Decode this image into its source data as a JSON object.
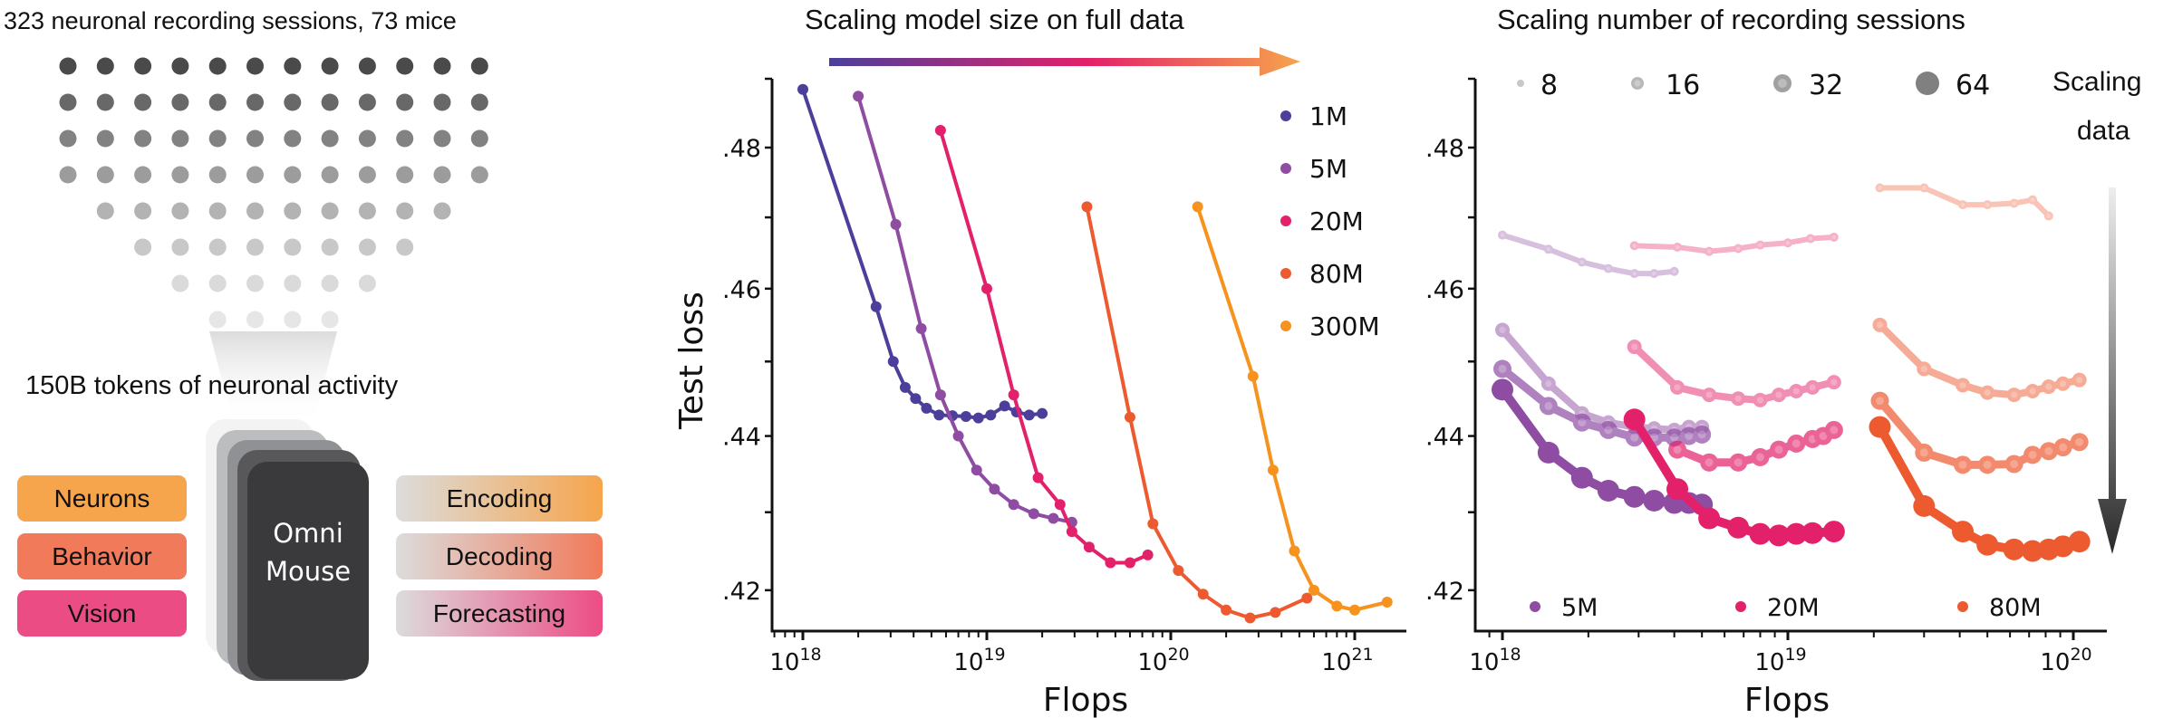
{
  "left_panel": {
    "sessions_caption": "323 neuronal recording sessions, 73 mice",
    "tokens_caption": "150B tokens of neuronal activity",
    "model_name_line1": "Omni",
    "model_name_line2": "Mouse",
    "inputs": [
      {
        "label": "Neurons",
        "color": "#F6A54C"
      },
      {
        "label": "Behavior",
        "color": "#F17A5A"
      },
      {
        "label": "Vision",
        "color": "#EC4C84"
      }
    ],
    "outputs": [
      {
        "label": "Encoding",
        "color": "#F6A54C"
      },
      {
        "label": "Decoding",
        "color": "#F17A5A"
      },
      {
        "label": "Forecasting",
        "color": "#EC4C84"
      }
    ]
  },
  "chart_data": [
    {
      "type": "line",
      "title": "Scaling model size on full data",
      "xlabel": "Flops",
      "ylabel": "Test loss",
      "xscale": "log",
      "yscale": "log",
      "xlim": [
        6e+17,
        1.7e+21
      ],
      "ylim": [
        0.4135,
        0.492
      ],
      "xticks": [
        {
          "value": 1e+18,
          "base": "10",
          "exp": "18"
        },
        {
          "value": 1e+19,
          "base": "10",
          "exp": "19"
        },
        {
          "value": 1e+20,
          "base": "10",
          "exp": "20"
        },
        {
          "value": 1e+21,
          "base": "10",
          "exp": "21"
        }
      ],
      "yticks": [
        {
          "value": 0.48,
          "label": ".48"
        },
        {
          "value": 0.46,
          "label": ".46"
        },
        {
          "value": 0.44,
          "label": ".44"
        },
        {
          "value": 0.42,
          "label": ".42"
        }
      ],
      "legend_position": "top-right",
      "series": [
        {
          "name": "1M",
          "color": "#4B3F9B",
          "x": [
            1e+18,
            2.5e+18,
            3.1e+18,
            3.6e+18,
            4.1e+18,
            4.7e+18,
            5.5e+18,
            6.5e+18,
            7.7e+18,
            9e+18,
            1.05e+19,
            1.25e+19,
            1.45e+19,
            1.7e+19,
            2e+19
          ],
          "y": [
            0.4885,
            0.4575,
            0.45,
            0.4465,
            0.445,
            0.4437,
            0.4428,
            0.4427,
            0.4426,
            0.4424,
            0.4428,
            0.444,
            0.4432,
            0.4428,
            0.443
          ]
        },
        {
          "name": "5M",
          "color": "#8E4DA3",
          "x": [
            2e+18,
            3.2e+18,
            4.4e+18,
            5.6e+18,
            7e+18,
            8.8e+18,
            1.1e+19,
            1.4e+19,
            1.8e+19,
            2.3e+19,
            2.9e+19
          ],
          "y": [
            0.4875,
            0.469,
            0.4545,
            0.4455,
            0.44,
            0.4355,
            0.433,
            0.431,
            0.4298,
            0.4292,
            0.4287
          ]
        },
        {
          "name": "20M",
          "color": "#E3206A",
          "x": [
            5.6e+18,
            1e+19,
            1.4e+19,
            1.9e+19,
            2.5e+19,
            2.9e+19,
            3.6e+19,
            4.7e+19,
            6e+19,
            7.5e+19
          ],
          "y": [
            0.4825,
            0.46,
            0.4455,
            0.4345,
            0.431,
            0.4275,
            0.4255,
            0.4235,
            0.4235,
            0.4245
          ]
        },
        {
          "name": "80M",
          "color": "#EE5A30",
          "x": [
            3.5e+19,
            6e+19,
            8e+19,
            1.1e+20,
            1.5e+20,
            2e+20,
            2.7e+20,
            3.7e+20,
            5.5e+20
          ],
          "y": [
            0.4715,
            0.4425,
            0.4285,
            0.4225,
            0.4195,
            0.4175,
            0.4165,
            0.4172,
            0.419
          ]
        },
        {
          "name": "300M",
          "color": "#F6921E",
          "x": [
            1.4e+20,
            2.8e+20,
            3.6e+20,
            4.7e+20,
            6e+20,
            8e+20,
            1e+21,
            1.5e+21
          ],
          "y": [
            0.4715,
            0.448,
            0.4355,
            0.425,
            0.42,
            0.418,
            0.4175,
            0.4185
          ]
        }
      ]
    },
    {
      "type": "line",
      "title": "Scaling number of recording sessions",
      "xlabel": "Flops",
      "ylabel": "",
      "xscale": "log",
      "yscale": "log",
      "xlim": [
        9e+17,
        1.25e+20
      ],
      "ylim": [
        0.4135,
        0.492
      ],
      "xticks": [
        {
          "value": 1e+18,
          "base": "10",
          "exp": "18"
        },
        {
          "value": 1e+19,
          "base": "10",
          "exp": "19"
        },
        {
          "value": 1e+20,
          "base": "10",
          "exp": "20"
        }
      ],
      "yticks": [
        {
          "value": 0.48,
          "label": ".48"
        },
        {
          "value": 0.46,
          "label": ".46"
        },
        {
          "value": 0.44,
          "label": ".44"
        },
        {
          "value": 0.42,
          "label": ".42"
        }
      ],
      "size_legend": [
        {
          "label": "8",
          "color": "#c8c8c8"
        },
        {
          "label": "16",
          "color": "#b8b8b8"
        },
        {
          "label": "32",
          "color": "#a0a0a0"
        },
        {
          "label": "64",
          "color": "#808080"
        }
      ],
      "color_legend": [
        {
          "label": "5M",
          "color": "#8E4DA3"
        },
        {
          "label": "20M",
          "color": "#E3206A"
        },
        {
          "label": "80M",
          "color": "#EE5A30"
        }
      ],
      "annotation": {
        "line1": "Scaling",
        "line2": "data"
      },
      "series": [
        {
          "name": "5M",
          "sessions": 8,
          "color": "#8E4DA3",
          "x": [
            1e+18,
            1.45e+18,
            1.9e+18,
            2.35e+18,
            2.9e+18,
            3.4e+18,
            4e+18
          ],
          "y": [
            0.4675,
            0.4655,
            0.4637,
            0.4628,
            0.4621,
            0.4621,
            0.4624
          ]
        },
        {
          "name": "5M",
          "sessions": 16,
          "color": "#8E4DA3",
          "x": [
            1e+18,
            1.45e+18,
            1.9e+18,
            2.35e+18,
            2.9e+18,
            3.4e+18,
            4e+18,
            4.5e+18,
            5e+18
          ],
          "y": [
            0.4543,
            0.447,
            0.443,
            0.4418,
            0.4412,
            0.441,
            0.4408,
            0.4412,
            0.4412
          ]
        },
        {
          "name": "5M",
          "sessions": 32,
          "color": "#8E4DA3",
          "x": [
            1e+18,
            1.45e+18,
            1.9e+18,
            2.35e+18,
            2.9e+18,
            3.4e+18,
            4e+18,
            4.5e+18,
            5e+18
          ],
          "y": [
            0.449,
            0.444,
            0.4418,
            0.4408,
            0.4398,
            0.4398,
            0.4398,
            0.44,
            0.4402
          ]
        },
        {
          "name": "5M",
          "sessions": 64,
          "color": "#8E4DA3",
          "x": [
            1e+18,
            1.45e+18,
            1.9e+18,
            2.35e+18,
            2.9e+18,
            3.4e+18,
            4e+18,
            4.5e+18,
            5e+18
          ],
          "y": [
            0.4462,
            0.4378,
            0.4345,
            0.4328,
            0.432,
            0.4315,
            0.4312,
            0.4312,
            0.431
          ]
        },
        {
          "name": "20M",
          "sessions": 8,
          "color": "#E3206A",
          "x": [
            2.9e+18,
            4.1e+18,
            5.3e+18,
            6.7e+18,
            8e+18,
            1e+19,
            1.2e+19,
            1.45e+19
          ],
          "y": [
            0.466,
            0.4658,
            0.4652,
            0.4656,
            0.4661,
            0.4664,
            0.467,
            0.4672
          ]
        },
        {
          "name": "20M",
          "sessions": 16,
          "color": "#E3206A",
          "x": [
            2.9e+18,
            4.1e+18,
            5.3e+18,
            6.7e+18,
            8e+18,
            9.3e+18,
            1.07e+19,
            1.22e+19,
            1.45e+19
          ],
          "y": [
            0.452,
            0.4465,
            0.4455,
            0.445,
            0.4448,
            0.4455,
            0.446,
            0.4465,
            0.4472
          ]
        },
        {
          "name": "20M",
          "sessions": 32,
          "color": "#E3206A",
          "x": [
            4.1e+18,
            5.3e+18,
            6.7e+18,
            8e+18,
            9.3e+18,
            1.07e+19,
            1.22e+19,
            1.33e+19,
            1.45e+19
          ],
          "y": [
            0.4382,
            0.4365,
            0.4365,
            0.4372,
            0.4382,
            0.439,
            0.4396,
            0.44,
            0.4408
          ]
        },
        {
          "name": "20M",
          "sessions": 64,
          "color": "#E3206A",
          "x": [
            2.9e+18,
            4.1e+18,
            5.3e+18,
            6.7e+18,
            8e+18,
            9.3e+18,
            1.07e+19,
            1.22e+19,
            1.45e+19
          ],
          "y": [
            0.4422,
            0.433,
            0.4292,
            0.428,
            0.4272,
            0.427,
            0.4272,
            0.4273,
            0.4275
          ]
        },
        {
          "name": "80M",
          "sessions": 8,
          "color": "#EE5A30",
          "x": [
            2.1e+19,
            3e+19,
            4.1e+19,
            5e+19,
            6.2e+19,
            7.2e+19,
            8.2e+19
          ],
          "y": [
            0.4742,
            0.4742,
            0.4718,
            0.4718,
            0.472,
            0.4725,
            0.4702
          ]
        },
        {
          "name": "80M",
          "sessions": 16,
          "color": "#EE5A30",
          "x": [
            2.1e+19,
            3e+19,
            4.1e+19,
            5e+19,
            6.2e+19,
            7.2e+19,
            8.2e+19,
            9.2e+19,
            1.05e+20
          ],
          "y": [
            0.455,
            0.449,
            0.4468,
            0.4458,
            0.4455,
            0.446,
            0.4466,
            0.447,
            0.4475
          ]
        },
        {
          "name": "80M",
          "sessions": 32,
          "color": "#EE5A30",
          "x": [
            2.1e+19,
            3e+19,
            4.1e+19,
            5e+19,
            6.2e+19,
            7.2e+19,
            8.2e+19,
            9.2e+19,
            1.05e+20
          ],
          "y": [
            0.4447,
            0.4378,
            0.4362,
            0.4362,
            0.4363,
            0.4375,
            0.438,
            0.4385,
            0.4392
          ]
        },
        {
          "name": "80M",
          "sessions": 64,
          "color": "#EE5A30",
          "x": [
            2.1e+19,
            3e+19,
            4.1e+19,
            5e+19,
            6.2e+19,
            7.2e+19,
            8.2e+19,
            9.2e+19,
            1.05e+20
          ],
          "y": [
            0.4412,
            0.4308,
            0.4275,
            0.4258,
            0.4252,
            0.425,
            0.4252,
            0.4256,
            0.4262
          ]
        }
      ]
    }
  ]
}
